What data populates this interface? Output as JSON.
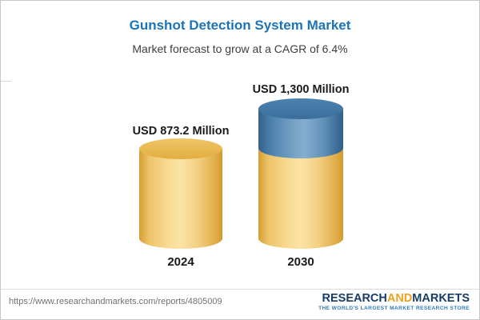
{
  "header": {
    "title": "Gunshot Detection System Market",
    "subtitle": "Market forecast to grow at a CAGR of 6.4%"
  },
  "chart_data": {
    "type": "bar",
    "categories": [
      "2024",
      "2030"
    ],
    "values": [
      873.2,
      1300
    ],
    "value_labels": [
      "USD 873.2 Million",
      "USD 1,300 Million"
    ],
    "unit": "USD Million",
    "title": "Gunshot Detection System Market",
    "subtitle": "Market forecast to grow at a CAGR of 6.4%",
    "cagr_pct": 6.4,
    "legend": false,
    "grid": false,
    "colors": {
      "title_accent": "#1b73ba",
      "bar_gold": "#f5d084",
      "bar_gold_edge": "#d79d31",
      "bar_blue": "#4d82ad",
      "bar_blue_edge": "#31618c",
      "label_text": "#1a1a1a"
    },
    "layout_hint": "two 3D cylinder bars, 2030 bar stacked blue growth segment on gold base"
  },
  "footer": {
    "url": "https://www.researchandmarkets.com/reports/4805009",
    "logo": {
      "part1": "RESEARCH",
      "part2": "AND",
      "part3": "MARKETS",
      "tagline": "THE WORLD'S LARGEST MARKET RESEARCH STORE"
    }
  }
}
